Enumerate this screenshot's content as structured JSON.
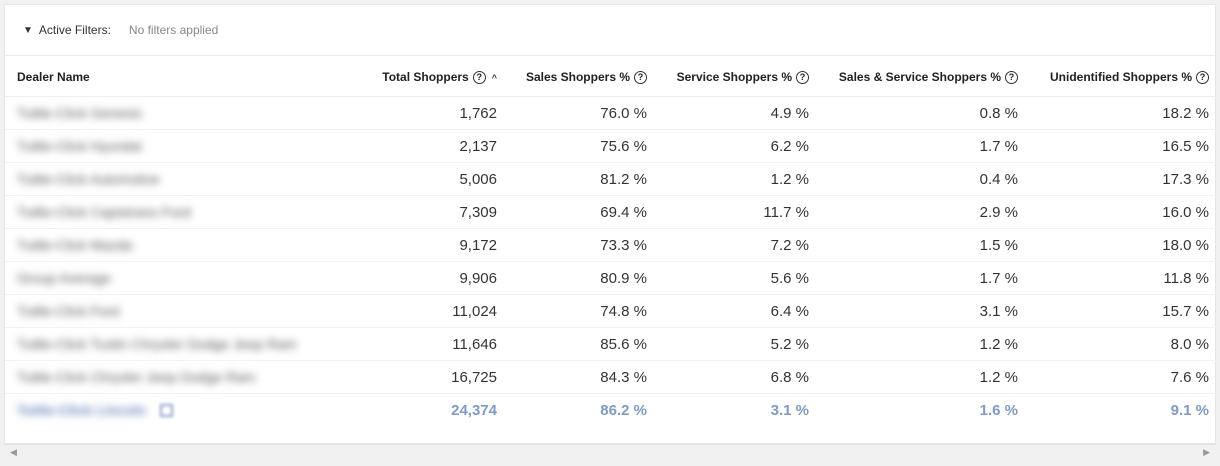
{
  "filters": {
    "label": "Active Filters:",
    "value": "No filters applied"
  },
  "table": {
    "columns": [
      "Dealer Name",
      "Total Shoppers",
      "Sales Shoppers %",
      "Service Shoppers %",
      "Sales & Service Shoppers %",
      "Unidentified Shoppers %"
    ],
    "rows": [
      {
        "name": "Tuttle-Click Genesis",
        "total": "1,762",
        "sales": "76.0 %",
        "service": "4.9 %",
        "both": "0.8 %",
        "unidentified": "18.2 %"
      },
      {
        "name": "Tuttle-Click Hyundai",
        "total": "2,137",
        "sales": "75.6 %",
        "service": "6.2 %",
        "both": "1.7 %",
        "unidentified": "16.5 %"
      },
      {
        "name": "Tuttle-Click Automotive",
        "total": "5,006",
        "sales": "81.2 %",
        "service": "1.2 %",
        "both": "0.4 %",
        "unidentified": "17.3 %"
      },
      {
        "name": "Tuttle-Click Capistrano Ford",
        "total": "7,309",
        "sales": "69.4 %",
        "service": "11.7 %",
        "both": "2.9 %",
        "unidentified": "16.0 %"
      },
      {
        "name": "Tuttle-Click Mazda",
        "total": "9,172",
        "sales": "73.3 %",
        "service": "7.2 %",
        "both": "1.5 %",
        "unidentified": "18.0 %"
      },
      {
        "name": "Group Average",
        "total": "9,906",
        "sales": "80.9 %",
        "service": "5.6 %",
        "both": "1.7 %",
        "unidentified": "11.8 %"
      },
      {
        "name": "Tuttle-Click Ford",
        "total": "11,024",
        "sales": "74.8 %",
        "service": "6.4 %",
        "both": "3.1 %",
        "unidentified": "15.7 %"
      },
      {
        "name": "Tuttle-Click Tustin Chrysler Dodge Jeep Ram",
        "total": "11,646",
        "sales": "85.6 %",
        "service": "5.2 %",
        "both": "1.2 %",
        "unidentified": "8.0 %"
      },
      {
        "name": "Tuttle-Click Chrysler Jeep Dodge Ram",
        "total": "16,725",
        "sales": "84.3 %",
        "service": "6.8 %",
        "both": "1.2 %",
        "unidentified": "7.6 %"
      }
    ],
    "total_row": {
      "name": "Tuttle-Click Lincoln",
      "total": "24,374",
      "sales": "86.2 %",
      "service": "3.1 %",
      "both": "1.6 %",
      "unidentified": "9.1 %"
    }
  },
  "colors": {
    "highlight_text": "#7e9ac5",
    "background": "#f1f1f1"
  }
}
